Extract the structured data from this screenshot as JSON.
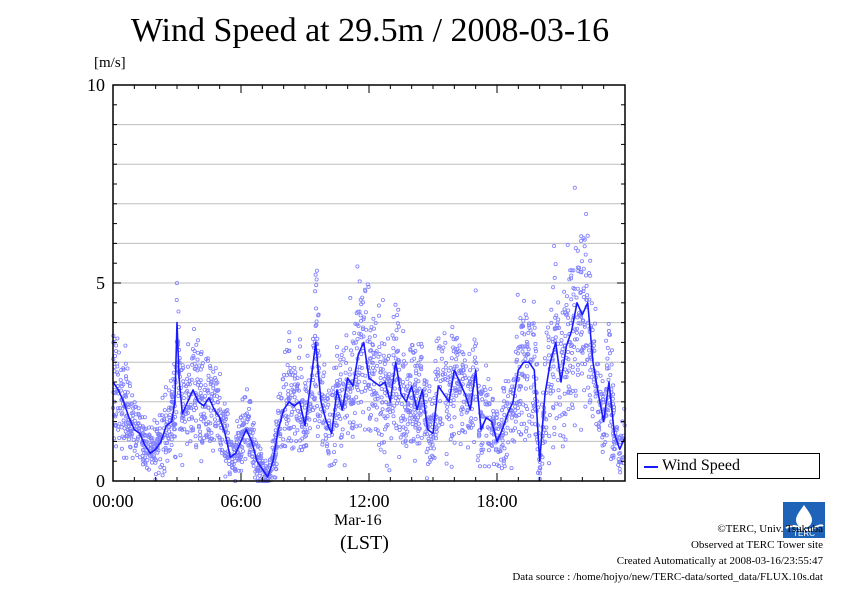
{
  "chart_data": {
    "type": "scatter",
    "title": "Wind Speed at 29.5m / 2008-03-16",
    "ylabel": "[m/s]",
    "ylim": [
      0,
      10
    ],
    "y_ticks": [
      "0",
      "5",
      "10"
    ],
    "xlim": [
      "00:00",
      "24:00"
    ],
    "x_ticks": [
      "00:00",
      "06:00",
      "12:00",
      "18:00"
    ],
    "date_label": "Mar-16",
    "time_zone": "(LST)",
    "grid": true,
    "legend_position": "right",
    "series": [
      {
        "name": "Wind Speed",
        "color": "#1a1aff",
        "scatter_color": "#7f7fff",
        "x_hours": [
          0,
          0.25,
          0.5,
          0.75,
          1.0,
          1.25,
          1.5,
          1.75,
          2.0,
          2.25,
          2.5,
          2.75,
          2.9,
          3.0,
          3.1,
          3.25,
          3.5,
          3.75,
          4.0,
          4.25,
          4.5,
          4.75,
          5.0,
          5.25,
          5.5,
          5.75,
          6.0,
          6.25,
          6.5,
          6.75,
          7.0,
          7.25,
          7.5,
          7.75,
          8.0,
          8.25,
          8.5,
          8.75,
          9.0,
          9.25,
          9.5,
          9.75,
          10.0,
          10.25,
          10.5,
          10.75,
          11.0,
          11.25,
          11.5,
          11.75,
          12.0,
          12.25,
          12.5,
          12.75,
          13.0,
          13.25,
          13.5,
          13.75,
          14.0,
          14.25,
          14.5,
          14.75,
          15.0,
          15.25,
          15.5,
          15.75,
          16.0,
          16.25,
          16.5,
          16.75,
          17.0,
          17.25,
          17.5,
          17.75,
          18.0,
          18.25,
          18.5,
          18.75,
          19.0,
          19.25,
          19.5,
          19.75,
          20.0,
          20.25,
          20.5,
          20.75,
          21.0,
          21.25,
          21.5,
          21.75,
          22.0,
          22.25,
          22.5,
          22.75,
          23.0,
          23.25,
          23.5,
          23.75,
          24.0
        ],
        "values": [
          2.5,
          2.3,
          2.0,
          1.6,
          1.3,
          1.2,
          0.9,
          0.7,
          0.8,
          1.0,
          1.4,
          1.5,
          2.0,
          4.0,
          2.6,
          1.7,
          2.0,
          2.3,
          2.0,
          1.9,
          2.1,
          1.8,
          1.6,
          1.2,
          0.6,
          0.7,
          1.0,
          1.3,
          1.0,
          0.5,
          0.3,
          0.1,
          0.5,
          1.3,
          1.8,
          2.0,
          1.9,
          2.0,
          1.4,
          2.4,
          3.5,
          2.0,
          1.5,
          1.2,
          2.3,
          1.8,
          2.6,
          2.4,
          3.2,
          3.5,
          2.6,
          2.5,
          2.4,
          2.5,
          2.0,
          3.0,
          2.2,
          2.0,
          2.4,
          1.8,
          2.3,
          1.3,
          1.2,
          2.4,
          2.2,
          2.0,
          2.8,
          2.5,
          2.2,
          1.8,
          2.8,
          1.3,
          1.6,
          1.5,
          1.0,
          1.3,
          1.7,
          2.0,
          2.8,
          3.0,
          3.0,
          2.8,
          0.5,
          2.2,
          3.0,
          3.5,
          2.5,
          3.4,
          3.8,
          4.5,
          4.2,
          4.5,
          3.0,
          2.2,
          1.5,
          2.5,
          1.2,
          0.8,
          1.1
        ]
      }
    ]
  },
  "credits": {
    "copyright": "©TERC, Univ. Tsukuba",
    "observed": "Observed at TERC Tower site",
    "created": "Created Automatically at 2008-03-16/23:55:47",
    "source": "Data source : /home/hojyo/new/TERC-data/sorted_data/FLUX.10s.dat",
    "logo_text": "TERC"
  }
}
